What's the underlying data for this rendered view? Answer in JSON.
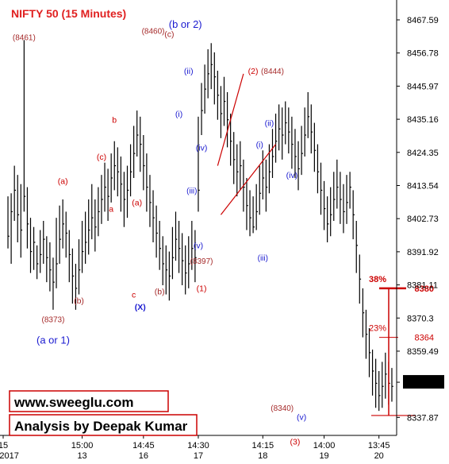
{
  "chart_data": {
    "type": "ohlc",
    "title": "NIFTY 50 (15 Minutes)",
    "ylim": [
      8332,
      8472
    ],
    "y_ticks": [
      "8467.59",
      "8456.78",
      "8445.97",
      "8435.16",
      "8424.35",
      "8413.54",
      "8402.73",
      "8391.92",
      "8381.11",
      "8370.3",
      "8359.49",
      "8349.35",
      "8337.87"
    ],
    "y_tick_values": [
      8467.59,
      8456.78,
      8445.97,
      8435.16,
      8424.35,
      8413.54,
      8402.73,
      8391.92,
      8381.11,
      8370.3,
      8359.49,
      8349.35,
      8337.87
    ],
    "last_price": "8349.35",
    "x_time_labels": [
      "15",
      "15:00",
      "14:45",
      "14:30",
      "14:15",
      "14:00",
      "13:45"
    ],
    "x_date_labels": [
      "12/2017",
      "13",
      "16",
      "17",
      "18",
      "19",
      "20"
    ],
    "x_label_index": [
      0,
      23,
      42,
      59,
      79,
      98,
      115
    ],
    "bars": [
      [
        8397,
        8410,
        8393
      ],
      [
        8405,
        8411,
        8388
      ],
      [
        8412,
        8420,
        8402
      ],
      [
        8404,
        8417,
        8395
      ],
      [
        8399,
        8414,
        8390
      ],
      [
        8410,
        8461,
        8405
      ],
      [
        8401,
        8413,
        8393
      ],
      [
        8392,
        8403,
        8385
      ],
      [
        8395,
        8400,
        8386
      ],
      [
        8388,
        8394,
        8383
      ],
      [
        8391,
        8399,
        8385
      ],
      [
        8396,
        8402,
        8388
      ],
      [
        8390,
        8397,
        8382
      ],
      [
        8386,
        8395,
        8379
      ],
      [
        8382,
        8390,
        8373
      ],
      [
        8388,
        8403,
        8380
      ],
      [
        8396,
        8407,
        8388
      ],
      [
        8401,
        8409,
        8393
      ],
      [
        8398,
        8405,
        8390
      ],
      [
        8391,
        8399,
        8382
      ],
      [
        8384,
        8393,
        8375
      ],
      [
        8380,
        8388,
        8373
      ],
      [
        8386,
        8396,
        8378
      ],
      [
        8392,
        8402,
        8385
      ],
      [
        8395,
        8405,
        8388
      ],
      [
        8399,
        8409,
        8391
      ],
      [
        8403,
        8414,
        8396
      ],
      [
        8400,
        8409,
        8392
      ],
      [
        8405,
        8413,
        8397
      ],
      [
        8409,
        8417,
        8401
      ],
      [
        8413,
        8421,
        8405
      ],
      [
        8410,
        8419,
        8402
      ],
      [
        8416,
        8424,
        8408
      ],
      [
        8420,
        8428,
        8412
      ],
      [
        8418,
        8426,
        8410
      ],
      [
        8414,
        8423,
        8405
      ],
      [
        8409,
        8418,
        8400
      ],
      [
        8412,
        8420,
        8403
      ],
      [
        8418,
        8427,
        8410
      ],
      [
        8424,
        8433,
        8416
      ],
      [
        8430,
        8438,
        8423
      ],
      [
        8427,
        8436,
        8418
      ],
      [
        8420,
        8430,
        8412
      ],
      [
        8413,
        8424,
        8405
      ],
      [
        8408,
        8417,
        8400
      ],
      [
        8403,
        8412,
        8395
      ],
      [
        8398,
        8407,
        8390
      ],
      [
        8393,
        8402,
        8386
      ],
      [
        8388,
        8397,
        8381
      ],
      [
        8386,
        8394,
        8378
      ],
      [
        8384,
        8392,
        8376
      ],
      [
        8390,
        8400,
        8383
      ],
      [
        8396,
        8405,
        8389
      ],
      [
        8393,
        8402,
        8385
      ],
      [
        8389,
        8398,
        8381
      ],
      [
        8385,
        8394,
        8378
      ],
      [
        8388,
        8397,
        8380
      ],
      [
        8393,
        8402,
        8386
      ],
      [
        8390,
        8399,
        8382
      ],
      [
        8412,
        8436,
        8405
      ],
      [
        8438,
        8447,
        8430
      ],
      [
        8445,
        8453,
        8437
      ],
      [
        8450,
        8458,
        8442
      ],
      [
        8453,
        8460,
        8445
      ],
      [
        8449,
        8457,
        8440
      ],
      [
        8443,
        8451,
        8435
      ],
      [
        8437,
        8446,
        8429
      ],
      [
        8441,
        8449,
        8433
      ],
      [
        8435,
        8444,
        8426
      ],
      [
        8428,
        8437,
        8420
      ],
      [
        8422,
        8431,
        8414
      ],
      [
        8418,
        8427,
        8410
      ],
      [
        8420,
        8428,
        8412
      ],
      [
        8413,
        8422,
        8405
      ],
      [
        8407,
        8416,
        8399
      ],
      [
        8403,
        8412,
        8397
      ],
      [
        8400,
        8410,
        8398
      ],
      [
        8405,
        8414,
        8399
      ],
      [
        8411,
        8420,
        8404
      ],
      [
        8416,
        8425,
        8409
      ],
      [
        8413,
        8422,
        8405
      ],
      [
        8418,
        8427,
        8411
      ],
      [
        8423,
        8432,
        8416
      ],
      [
        8428,
        8437,
        8421
      ],
      [
        8432,
        8440,
        8425
      ],
      [
        8430,
        8439,
        8422
      ],
      [
        8434,
        8441,
        8427
      ],
      [
        8431,
        8439,
        8424
      ],
      [
        8427,
        8436,
        8419
      ],
      [
        8423,
        8432,
        8416
      ],
      [
        8419,
        8428,
        8412
      ],
      [
        8424,
        8433,
        8417
      ],
      [
        8430,
        8439,
        8423
      ],
      [
        8436,
        8444,
        8429
      ],
      [
        8431,
        8440,
        8424
      ],
      [
        8425,
        8434,
        8418
      ],
      [
        8418,
        8427,
        8411
      ],
      [
        8412,
        8421,
        8404
      ],
      [
        8406,
        8415,
        8399
      ],
      [
        8401,
        8410,
        8395
      ],
      [
        8404,
        8413,
        8397
      ],
      [
        8409,
        8418,
        8402
      ],
      [
        8413,
        8422,
        8406
      ],
      [
        8409,
        8418,
        8401
      ],
      [
        8405,
        8414,
        8398
      ],
      [
        8408,
        8417,
        8401
      ],
      [
        8413,
        8418,
        8406
      ],
      [
        8404,
        8412,
        8396
      ],
      [
        8394,
        8402,
        8385
      ],
      [
        8383,
        8391,
        8375
      ],
      [
        8372,
        8380,
        8364
      ],
      [
        8365,
        8373,
        8357
      ],
      [
        8359,
        8367,
        8351
      ],
      [
        8353,
        8360,
        8345
      ],
      [
        8349,
        8357,
        8341
      ],
      [
        8345,
        8353,
        8340
      ],
      [
        8348,
        8356,
        8341
      ],
      [
        8352,
        8359,
        8344
      ],
      [
        8349,
        8356,
        8342
      ],
      [
        8348,
        8354,
        8343
      ]
    ],
    "annotations": [
      {
        "text": "(8461)",
        "color": "#a52a2a",
        "bar": 5,
        "price": 8461
      },
      {
        "text": "(a)",
        "color": "#cc0000",
        "bar": 17,
        "price": 8414
      },
      {
        "text": "(b)",
        "color": "#a52a2a",
        "bar": 22,
        "price": 8375
      },
      {
        "text": "(8373)",
        "color": "#a52a2a",
        "bar": 14,
        "price": 8369
      },
      {
        "text": "(a or 1)",
        "color": "#1a1ad0",
        "bar": 14,
        "price": 8362
      },
      {
        "text": "(c)",
        "color": "#cc0000",
        "bar": 29,
        "price": 8422
      },
      {
        "text": "b",
        "color": "#cc0000",
        "bar": 33,
        "price": 8434
      },
      {
        "text": "a",
        "color": "#cc0000",
        "bar": 32,
        "price": 8405
      },
      {
        "text": "(a)",
        "color": "#cc0000",
        "bar": 40,
        "price": 8407
      },
      {
        "text": "c",
        "color": "#cc0000",
        "bar": 39,
        "price": 8377
      },
      {
        "text": "(X)",
        "color": "#1a1ad0",
        "bar": 41,
        "price": 8373
      },
      {
        "text": "(b)",
        "color": "#a52a2a",
        "bar": 47,
        "price": 8378
      },
      {
        "text": "(8460)",
        "color": "#a52a2a",
        "bar": 45,
        "price": 8463
      },
      {
        "text": "(c)",
        "color": "#a52a2a",
        "bar": 50,
        "price": 8462
      },
      {
        "text": "(b or 2)",
        "color": "#1a1ad0",
        "bar": 55,
        "price": 8465
      },
      {
        "text": "(ii)",
        "color": "#1a1ad0",
        "bar": 56,
        "price": 8450
      },
      {
        "text": "(i)",
        "color": "#1a1ad0",
        "bar": 53,
        "price": 8436
      },
      {
        "text": "(iv)",
        "color": "#1a1ad0",
        "bar": 60,
        "price": 8425
      },
      {
        "text": "(iii)",
        "color": "#1a1ad0",
        "bar": 57,
        "price": 8411
      },
      {
        "text": "(v)",
        "color": "#1a1ad0",
        "bar": 59,
        "price": 8393
      },
      {
        "text": "(8397)",
        "color": "#a52a2a",
        "bar": 60,
        "price": 8388
      },
      {
        "text": "(1)",
        "color": "#cc0000",
        "bar": 60,
        "price": 8379
      },
      {
        "text": "(2)",
        "color": "#cc0000",
        "bar": 76,
        "price": 8450
      },
      {
        "text": "(8444)",
        "color": "#a52a2a",
        "bar": 82,
        "price": 8450
      },
      {
        "text": "(ii)",
        "color": "#1a1ad0",
        "bar": 81,
        "price": 8433
      },
      {
        "text": "(i)",
        "color": "#1a1ad0",
        "bar": 78,
        "price": 8426
      },
      {
        "text": "(iv)",
        "color": "#1a1ad0",
        "bar": 88,
        "price": 8416
      },
      {
        "text": "(iii)",
        "color": "#1a1ad0",
        "bar": 79,
        "price": 8389
      },
      {
        "text": "(8340)",
        "color": "#a52a2a",
        "bar": 85,
        "price": 8340
      },
      {
        "text": "(v)",
        "color": "#1a1ad0",
        "bar": 91,
        "price": 8337
      },
      {
        "text": "(3)",
        "color": "#cc0000",
        "bar": 89,
        "price": 8329
      }
    ],
    "fib_levels": [
      {
        "pct": "38%",
        "price_label": "8380",
        "price": 8380
      },
      {
        "pct": "23%",
        "price_label": "8364",
        "price": 8364
      }
    ],
    "fib_base_price": 8338.5,
    "lines": [
      {
        "from": [
          66,
          8404
        ],
        "to": [
          83,
          8427
        ],
        "color": "#cc0000"
      },
      {
        "from": [
          65,
          8420
        ],
        "to": [
          73,
          8450
        ],
        "color": "#cc0000"
      }
    ]
  },
  "boxes": {
    "website": "www.sweeglu.com",
    "analysis": "Analysis by Deepak Kumar"
  }
}
